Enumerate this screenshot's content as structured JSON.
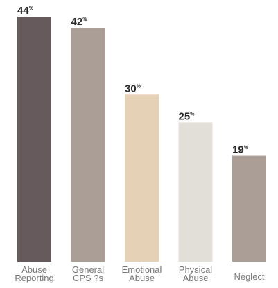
{
  "chart_data": {
    "type": "bar",
    "value_suffix": "%",
    "categories": [
      [
        "Abuse",
        "Reporting"
      ],
      [
        "General",
        "CPS ?s"
      ],
      [
        "Emotional",
        "Abuse"
      ],
      [
        "Physical",
        "Abuse"
      ],
      [
        "Neglect"
      ]
    ],
    "values": [
      44,
      42,
      30,
      25,
      19
    ],
    "colors": [
      "#665a5d",
      "#ab9e97",
      "#e5d1b5",
      "#e2dfd8",
      "#ab9e97"
    ],
    "ylim": [
      0,
      44
    ],
    "grid": false,
    "legend": "none"
  }
}
